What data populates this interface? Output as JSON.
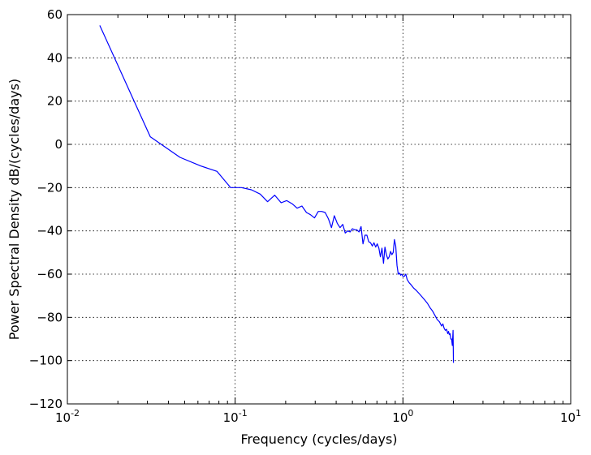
{
  "chart_data": {
    "type": "line",
    "xlabel": "Frequency (cycles/days)",
    "ylabel": "Power Spectral Density dB/(cycles/days)",
    "xscale": "log",
    "xlim": [
      0.01,
      10
    ],
    "ylim": [
      -120,
      60
    ],
    "grid": true,
    "x_ticks": [
      {
        "base": "10",
        "exp": "-2",
        "value": 0.01
      },
      {
        "base": "10",
        "exp": "-1",
        "value": 0.1
      },
      {
        "base": "10",
        "exp": "0",
        "value": 1
      },
      {
        "base": "10",
        "exp": "1",
        "value": 10
      }
    ],
    "y_ticks": [
      60,
      40,
      20,
      0,
      -20,
      -40,
      -60,
      -80,
      -100,
      -120
    ],
    "y_tick_labels": [
      "60",
      "40",
      "20",
      "0",
      "−20",
      "−40",
      "−60",
      "−80",
      "−100",
      "−120"
    ],
    "colors": {
      "series": "#0000ff"
    },
    "series": [
      {
        "x": [
          0.0156,
          0.0312,
          0.0469,
          0.0625,
          0.078,
          0.094,
          0.109,
          0.125,
          0.141,
          0.156,
          0.172,
          0.188,
          0.203,
          0.219,
          0.234,
          0.25,
          0.266,
          0.281,
          0.297,
          0.313,
          0.328,
          0.344,
          0.36,
          0.375,
          0.39,
          0.406,
          0.422,
          0.438,
          0.453,
          0.469,
          0.484,
          0.5,
          0.516,
          0.531,
          0.547,
          0.563,
          0.578,
          0.594,
          0.61,
          0.625,
          0.641,
          0.657,
          0.672,
          0.688,
          0.703,
          0.719,
          0.734,
          0.75,
          0.766,
          0.781,
          0.797,
          0.813,
          0.828,
          0.844,
          0.859,
          0.875,
          0.89,
          0.906,
          0.922,
          0.938,
          0.953,
          0.969,
          0.984,
          1.0,
          1.02,
          1.04,
          1.06,
          1.09,
          1.12,
          1.16,
          1.2,
          1.25,
          1.3,
          1.35,
          1.4,
          1.45,
          1.5,
          1.55,
          1.6,
          1.65,
          1.7,
          1.73,
          1.76,
          1.79,
          1.82,
          1.85,
          1.87,
          1.89,
          1.91,
          1.93,
          1.95,
          1.97,
          1.99,
          2.0
        ],
        "y": [
          55,
          3.5,
          -6,
          -10,
          -12.5,
          -20,
          -20,
          -21,
          -23,
          -26.5,
          -23.5,
          -27,
          -26,
          -27.5,
          -29.5,
          -28.5,
          -31.5,
          -32.5,
          -34,
          -31,
          -31,
          -31.5,
          -34.5,
          -38.5,
          -33,
          -36.5,
          -38.5,
          -37,
          -41,
          -40,
          -40.5,
          -39,
          -39.5,
          -39.5,
          -40.5,
          -38,
          -46,
          -42,
          -42,
          -45,
          -45.5,
          -47,
          -45.5,
          -47.5,
          -46,
          -48,
          -52,
          -48,
          -55,
          -47.5,
          -51,
          -53,
          -52,
          -49.5,
          -51,
          -50,
          -44,
          -47,
          -56,
          -60,
          -59.5,
          -60.5,
          -60,
          -61,
          -61,
          -60,
          -62.5,
          -64,
          -65,
          -66.5,
          -67.5,
          -69,
          -70.5,
          -72,
          -73.5,
          -75.5,
          -77,
          -79,
          -81,
          -82,
          -84,
          -83,
          -85,
          -86,
          -85.5,
          -87.5,
          -86.5,
          -88,
          -87.5,
          -90,
          -90,
          -93,
          -86,
          -101
        ]
      }
    ]
  }
}
